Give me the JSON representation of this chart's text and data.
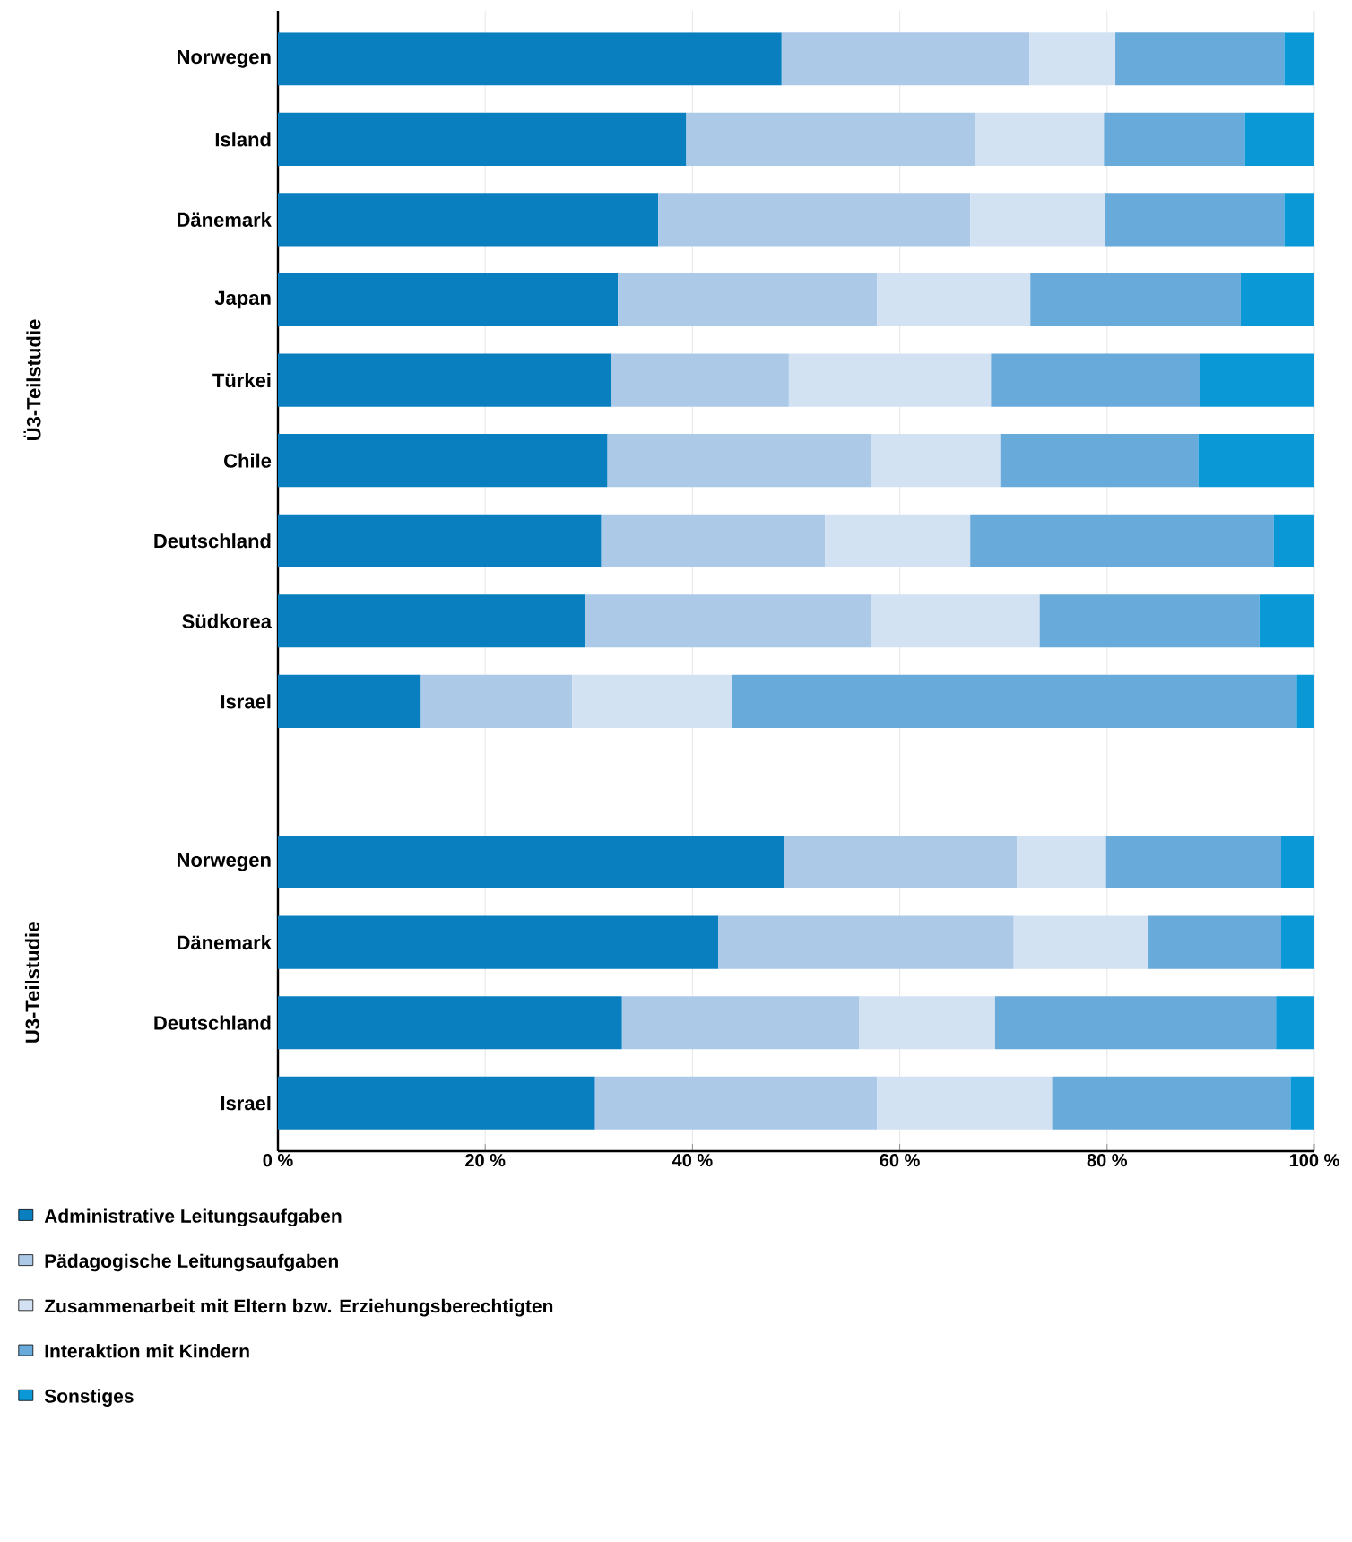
{
  "chart_data": {
    "type": "bar",
    "orientation": "horizontal",
    "stacked": true,
    "categories": [
      "Norwegen",
      "Island",
      "Dänemark",
      "Japan",
      "Türkei",
      "Chile",
      "Deutschland",
      "Südkorea",
      "Israel",
      null,
      "Norwegen",
      "Dänemark",
      "Deutschland",
      "Israel"
    ],
    "series": [
      {
        "name": "Administrative Leitungsaufgaben",
        "color": "#0a7fc0",
        "values": [
          48.6,
          39.4,
          36.7,
          32.8,
          32.1,
          31.8,
          31.2,
          29.7,
          13.8,
          null,
          48.8,
          42.5,
          33.2,
          30.6
        ]
      },
      {
        "name": "Pädagogische Leitungsaufgaben",
        "color": "#adc9e8",
        "values": [
          23.9,
          27.9,
          30.1,
          25.0,
          17.2,
          25.4,
          21.6,
          27.5,
          14.6,
          null,
          22.5,
          28.5,
          22.9,
          27.2
        ]
      },
      {
        "name": "Zusammenarbeit mit Eltern bzw. Erziehungsberechtigten",
        "color": "#d2e2f2",
        "values": [
          8.3,
          12.4,
          13.0,
          14.8,
          19.5,
          12.5,
          14.0,
          16.3,
          15.4,
          null,
          8.6,
          13.0,
          13.1,
          16.9
        ]
      },
      {
        "name": "Interaktion mit Kindern",
        "color": "#68aada",
        "values": [
          16.3,
          13.6,
          17.3,
          20.3,
          20.2,
          19.1,
          29.3,
          21.2,
          54.5,
          null,
          16.9,
          12.8,
          27.1,
          23.0
        ]
      },
      {
        "name": "Sonstiges",
        "color": "#0b98d6",
        "values": [
          2.9,
          6.7,
          2.9,
          7.1,
          11.0,
          11.2,
          3.9,
          5.3,
          1.7,
          null,
          3.2,
          3.2,
          3.7,
          2.3
        ]
      }
    ],
    "xlim": [
      0,
      100
    ],
    "xticks": [
      {
        "value": 0,
        "label": "0 %"
      },
      {
        "value": 20,
        "label": "20 %"
      },
      {
        "value": 40,
        "label": "40 %"
      },
      {
        "value": 60,
        "label": "60 %"
      },
      {
        "value": 80,
        "label": "80 %"
      },
      {
        "value": 100,
        "label": "100 %"
      }
    ],
    "grid": "x",
    "legend": "bottom",
    "annotations": [
      "Ü3-Teilstudie",
      "U3-Teilstudie"
    ]
  }
}
